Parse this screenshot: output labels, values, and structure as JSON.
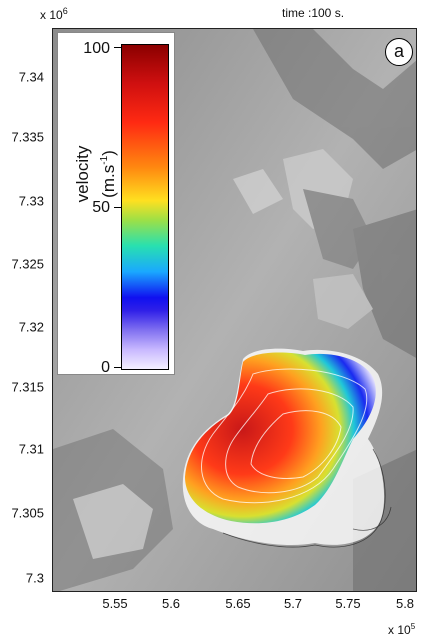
{
  "header": {
    "y_exponent": "x 10",
    "y_exponent_power": "6",
    "time_label": "time :100 s."
  },
  "panel_label": "a",
  "axes": {
    "y_ticks": [
      "7.34",
      "7.335",
      "7.33",
      "7.325",
      "7.32",
      "7.315",
      "7.31",
      "7.305",
      "7.3"
    ],
    "x_ticks": [
      "5.55",
      "5.6",
      "5.65",
      "5.7",
      "5.75",
      "5.8"
    ],
    "x_exponent": "x 10",
    "x_exponent_power": "5"
  },
  "colorbar": {
    "label_line1": "velocity",
    "label_unit": "(m.s",
    "label_unit_power": "-1",
    "label_unit_end": ")",
    "ticks": [
      "100",
      "50",
      "0"
    ],
    "range": [
      0,
      100
    ]
  }
}
